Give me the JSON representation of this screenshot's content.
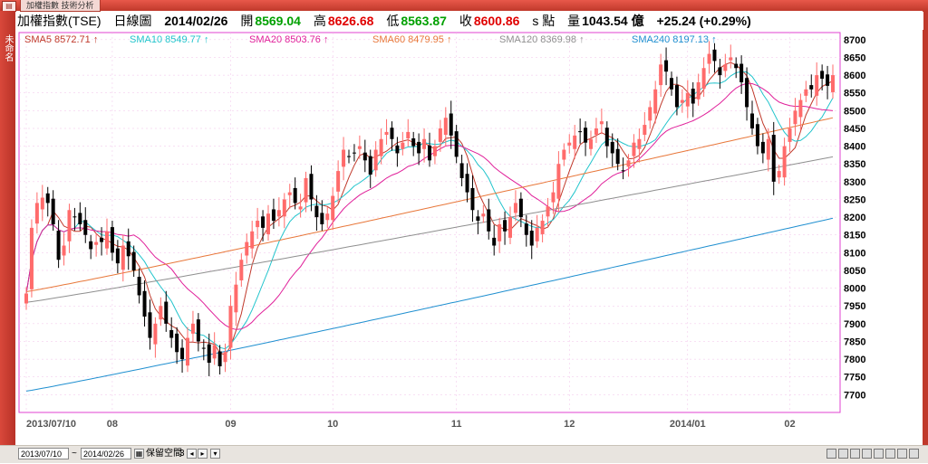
{
  "window": {
    "tab_label": "加權指數 技術分析",
    "side_label": "未命名"
  },
  "header": {
    "symbol": "加權指數(TSE)",
    "chart_type": "日線圖",
    "date": "2014/02/26",
    "open_label": "開",
    "open": "8569.04",
    "high_label": "高",
    "high": "8626.68",
    "low_label": "低",
    "low": "8563.87",
    "close_label": "收",
    "close": "8600.86",
    "unit": "s 點",
    "volume_label": "量",
    "volume": "1043.54 億",
    "change": "+25.24 (+0.29%)"
  },
  "legend": [
    {
      "label": "SMA5 8572.71",
      "color": "#c0392b"
    },
    {
      "label": "SMA10 8549.77",
      "color": "#22c4cc"
    },
    {
      "label": "SMA20 8503.76",
      "color": "#e0209a"
    },
    {
      "label": "SMA60 8479.95",
      "color": "#e8773a"
    },
    {
      "label": "SMA120 8369.98",
      "color": "#8f8f8f"
    },
    {
      "label": "SMA240 8197.13",
      "color": "#1f8fd0"
    }
  ],
  "colors": {
    "up": "#ff6b6b",
    "down": "#000000",
    "plot_border": "#e040d0",
    "grid": "#f0c0e8"
  },
  "chart_data": {
    "type": "line",
    "ylim": [
      7650,
      8720
    ],
    "yticks": [
      7700,
      7750,
      7800,
      7850,
      7900,
      7950,
      8000,
      8050,
      8100,
      8150,
      8200,
      8250,
      8300,
      8350,
      8400,
      8450,
      8500,
      8550,
      8600,
      8650,
      8700
    ],
    "xticks": [
      {
        "label": "2013/07/10",
        "i": 0
      },
      {
        "label": "08",
        "i": 16
      },
      {
        "label": "09",
        "i": 38
      },
      {
        "label": "10",
        "i": 57
      },
      {
        "label": "11",
        "i": 80
      },
      {
        "label": "12",
        "i": 101
      },
      {
        "label": "2014/01",
        "i": 123
      },
      {
        "label": "02",
        "i": 142
      }
    ],
    "closes": [
      7985,
      8170,
      8240,
      8255,
      8240,
      8180,
      8080,
      8120,
      8220,
      8200,
      8180,
      8150,
      8110,
      8130,
      8130,
      8160,
      8100,
      8070,
      8120,
      8090,
      8050,
      7980,
      7920,
      7860,
      7900,
      7950,
      7900,
      7860,
      7820,
      7800,
      7860,
      7900,
      7850,
      7830,
      7790,
      7840,
      7780,
      7820,
      7950,
      8010,
      8080,
      8130,
      8160,
      8190,
      8170,
      8210,
      8190,
      8220,
      8250,
      8270,
      8240,
      8230,
      8310,
      8250,
      8200,
      8180,
      8210,
      8260,
      8330,
      8390,
      8370,
      8380,
      8400,
      8360,
      8320,
      8390,
      8420,
      8440,
      8420,
      8380,
      8410,
      8440,
      8400,
      8380,
      8420,
      8360,
      8400,
      8450,
      8480,
      8430,
      8370,
      8310,
      8270,
      8220,
      8190,
      8210,
      8160,
      8120,
      8180,
      8160,
      8200,
      8240,
      8200,
      8150,
      8120,
      8170,
      8190,
      8230,
      8270,
      8350,
      8390,
      8410,
      8430,
      8440,
      8410,
      8420,
      8450,
      8470,
      8400,
      8380,
      8350,
      8330,
      8360,
      8410,
      8420,
      8460,
      8510,
      8560,
      8630,
      8610,
      8560,
      8510,
      8530,
      8550,
      8520,
      8580,
      8620,
      8660,
      8640,
      8600,
      8630,
      8650,
      8620,
      8580,
      8510,
      8450,
      8400,
      8380,
      8420,
      8300,
      8330,
      8400,
      8450,
      8500,
      8530,
      8560,
      8560,
      8600,
      8590,
      8570,
      8600
    ],
    "series": [
      {
        "name": "SMA5",
        "color": "#c0392b"
      },
      {
        "name": "SMA10",
        "color": "#22c4cc"
      },
      {
        "name": "SMA20",
        "color": "#e0209a"
      },
      {
        "name": "SMA60",
        "color": "#e8773a",
        "start": 7990,
        "end": 8480
      },
      {
        "name": "SMA120",
        "color": "#8f8f8f",
        "start": 7960,
        "end": 8370
      },
      {
        "name": "SMA240",
        "color": "#1f8fd0",
        "start": 7710,
        "end": 8197
      }
    ]
  },
  "bottombar": {
    "from_date": "2013/07/10",
    "to_label": "~",
    "to_date": "2014/02/26",
    "space_label": "保留空間",
    "space_value": "3"
  }
}
